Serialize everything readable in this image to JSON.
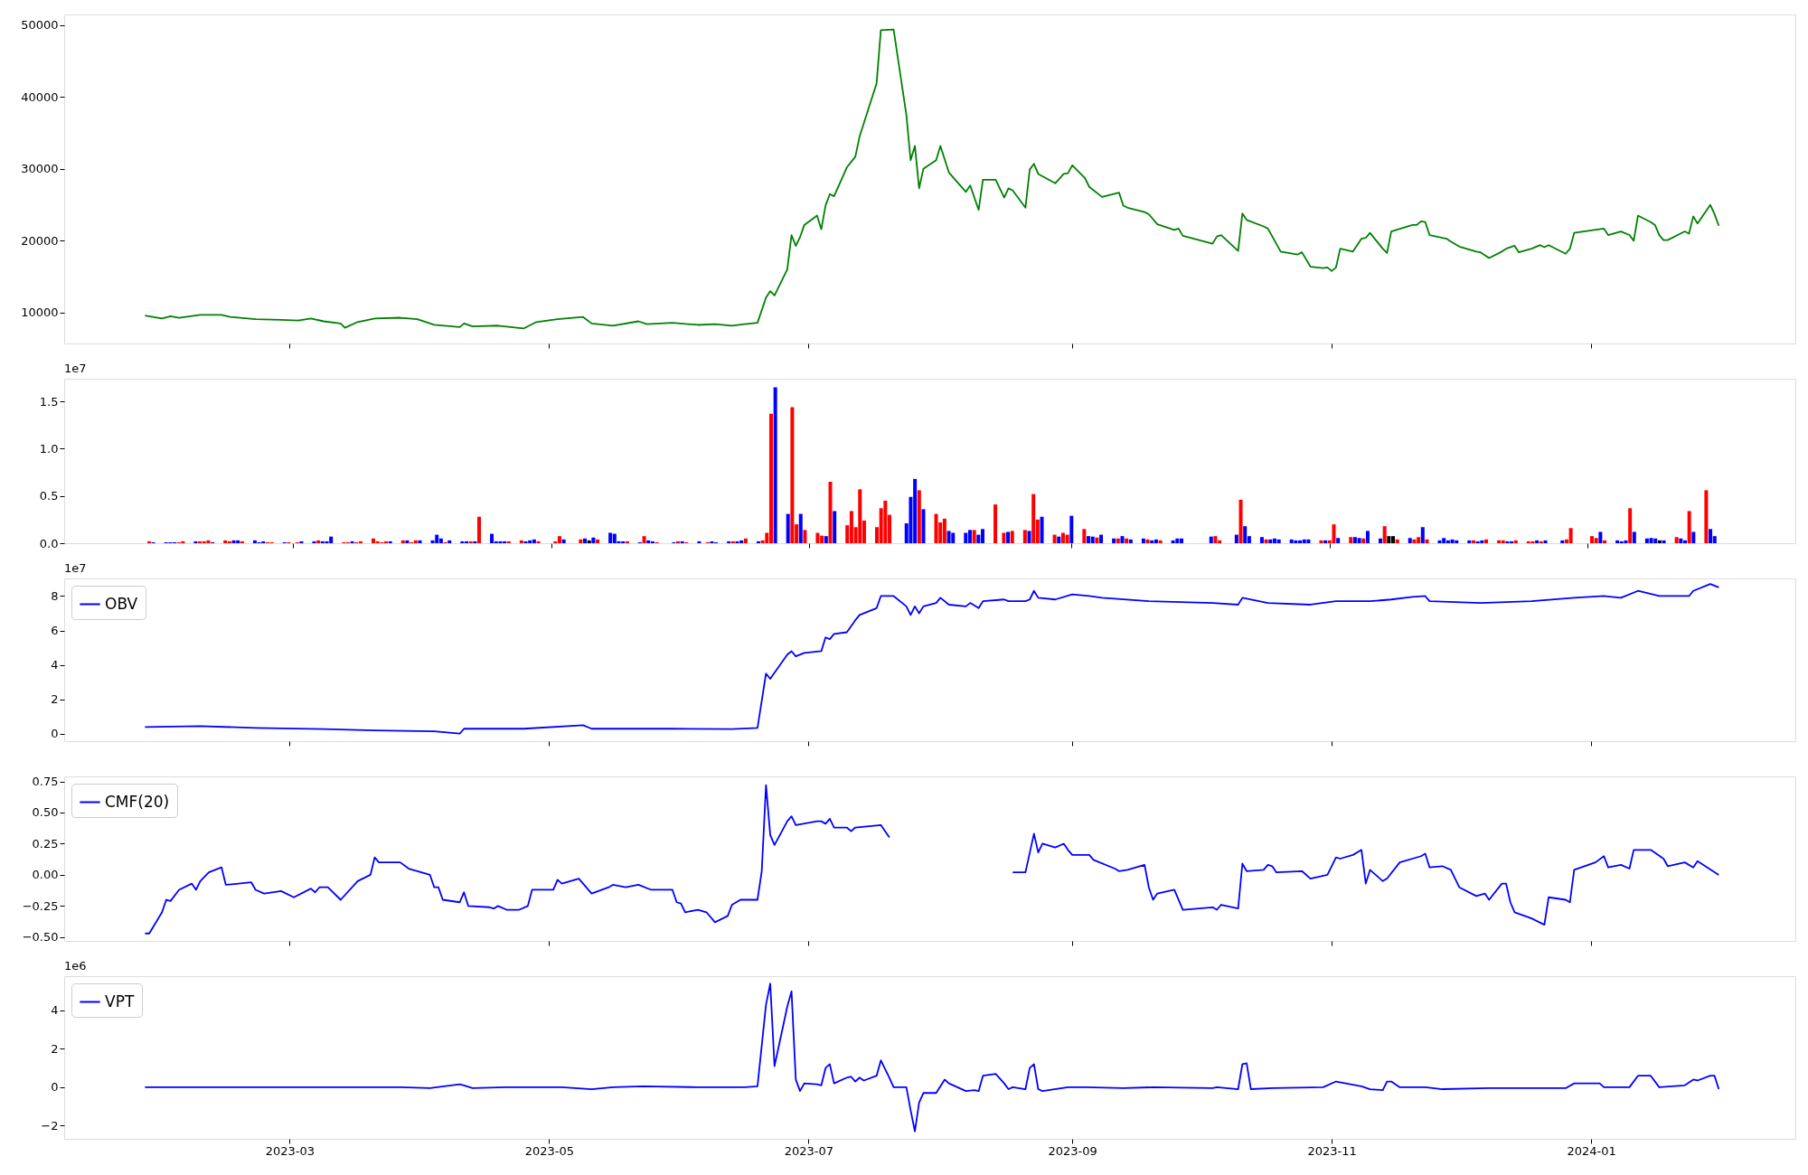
{
  "chart_data": [
    {
      "type": "line",
      "xlim": [
        "2023-01-07",
        "2024-02-18"
      ],
      "xticks": [
        "2023-03",
        "2023-05",
        "2023-07",
        "2023-09",
        "2023-11",
        "2024-01"
      ],
      "ylim": [
        5720,
        51480
      ],
      "yticks": [
        10000,
        20000,
        30000,
        40000,
        50000
      ],
      "tick_labels": "y",
      "series": [
        {
          "color": "#008000",
          "x": [
            "2023-01-26",
            "2023-01-30",
            "2023-02-01",
            "2023-02-03",
            "2023-02-08",
            "2023-02-13",
            "2023-02-15",
            "2023-02-21",
            "2023-02-27",
            "2023-03-03",
            "2023-03-06",
            "2023-03-09",
            "2023-03-13",
            "2023-03-14",
            "2023-03-17",
            "2023-03-21",
            "2023-03-27",
            "2023-03-31",
            "2023-04-04",
            "2023-04-10",
            "2023-04-11",
            "2023-04-13",
            "2023-04-19",
            "2023-04-25",
            "2023-04-28",
            "2023-05-03",
            "2023-05-09",
            "2023-05-11",
            "2023-05-16",
            "2023-05-22",
            "2023-05-24",
            "2023-05-30",
            "2023-06-05",
            "2023-06-09",
            "2023-06-13",
            "2023-06-16",
            "2023-06-19",
            "2023-06-21",
            "2023-06-22",
            "2023-06-23",
            "2023-06-26",
            "2023-06-27",
            "2023-06-28",
            "2023-06-29",
            "2023-06-30",
            "2023-07-03",
            "2023-07-04",
            "2023-07-05",
            "2023-07-06",
            "2023-07-07",
            "2023-07-10",
            "2023-07-12",
            "2023-07-13",
            "2023-07-17",
            "2023-07-18",
            "2023-07-21",
            "2023-07-24",
            "2023-07-25",
            "2023-07-26",
            "2023-07-27",
            "2023-07-28",
            "2023-07-31",
            "2023-08-01",
            "2023-08-03",
            "2023-08-07",
            "2023-08-08",
            "2023-08-10",
            "2023-08-11",
            "2023-08-14",
            "2023-08-16",
            "2023-08-17",
            "2023-08-18",
            "2023-08-21",
            "2023-08-22",
            "2023-08-23",
            "2023-08-24",
            "2023-08-28",
            "2023-08-30",
            "2023-08-31",
            "2023-09-01",
            "2023-09-04",
            "2023-09-05",
            "2023-09-08",
            "2023-09-12",
            "2023-09-13",
            "2023-09-14",
            "2023-09-18",
            "2023-09-19",
            "2023-09-21",
            "2023-09-25",
            "2023-09-26",
            "2023-09-27",
            "2023-10-04",
            "2023-10-05",
            "2023-10-06",
            "2023-10-10",
            "2023-10-11",
            "2023-10-12",
            "2023-10-16",
            "2023-10-17",
            "2023-10-20",
            "2023-10-24",
            "2023-10-25",
            "2023-10-27",
            "2023-10-30",
            "2023-10-31",
            "2023-11-01",
            "2023-11-02",
            "2023-11-03",
            "2023-11-06",
            "2023-11-08",
            "2023-11-09",
            "2023-11-10",
            "2023-11-13",
            "2023-11-14",
            "2023-11-15",
            "2023-11-20",
            "2023-11-21",
            "2023-11-22",
            "2023-11-23",
            "2023-11-24",
            "2023-11-28",
            "2023-11-29",
            "2023-12-01",
            "2023-12-05",
            "2023-12-06",
            "2023-12-08",
            "2023-12-11",
            "2023-12-12",
            "2023-12-14",
            "2023-12-15",
            "2023-12-18",
            "2023-12-20",
            "2023-12-21",
            "2023-12-22",
            "2023-12-26",
            "2023-12-27",
            "2023-12-28",
            "2024-01-04",
            "2024-01-05",
            "2024-01-08",
            "2024-01-10",
            "2024-01-11",
            "2024-01-12",
            "2024-01-15",
            "2024-01-16",
            "2024-01-17",
            "2024-01-18",
            "2024-01-19",
            "2024-01-23",
            "2024-01-24",
            "2024-01-25",
            "2024-01-26",
            "2024-01-29",
            "2024-01-30",
            "2024-01-31"
          ],
          "values": [
            9600,
            9200,
            9500,
            9300,
            9700,
            9700,
            9400,
            9100,
            9000,
            8900,
            9200,
            8800,
            8500,
            7900,
            8700,
            9200,
            9300,
            9100,
            8300,
            8000,
            8500,
            8100,
            8200,
            7800,
            8700,
            9100,
            9400,
            8500,
            8200,
            8800,
            8400,
            8600,
            8300,
            8400,
            8200,
            8400,
            8600,
            12100,
            13000,
            12400,
            16000,
            20800,
            19300,
            20500,
            22200,
            23500,
            21600,
            24900,
            26500,
            26200,
            30200,
            31700,
            34500,
            41900,
            49300,
            49400,
            37500,
            31200,
            33200,
            27300,
            30000,
            31200,
            33200,
            29500,
            26800,
            27700,
            24300,
            28500,
            28500,
            26000,
            27300,
            27000,
            24600,
            29900,
            30700,
            29300,
            28000,
            29300,
            29400,
            30500,
            28700,
            27500,
            26100,
            26700,
            24900,
            24600,
            24000,
            23700,
            22300,
            21500,
            21700,
            20700,
            19600,
            20600,
            20800,
            18600,
            23800,
            22900,
            22000,
            21700,
            18500,
            18100,
            18400,
            16400,
            16200,
            16300,
            15800,
            16300,
            18900,
            18500,
            20300,
            20400,
            21100,
            18900,
            18300,
            21300,
            22200,
            22200,
            22700,
            22600,
            20800,
            20300,
            19900,
            19200,
            18500,
            18400,
            17600,
            18500,
            18900,
            19300,
            18400,
            18900,
            19400,
            19100,
            19400,
            18200,
            18900,
            21100,
            21700,
            20800,
            21300,
            20800,
            20000,
            23500,
            22600,
            22200,
            20800,
            20100,
            20100,
            21300,
            21000,
            23400,
            22400,
            25000,
            23700,
            22100
          ]
        }
      ]
    },
    {
      "type": "bar",
      "xlim": [
        "2023-01-07",
        "2024-02-18"
      ],
      "xticks": [
        "2023-03",
        "2023-05",
        "2023-07",
        "2023-09",
        "2023-11",
        "2024-01"
      ],
      "ylim": [
        0,
        1.74
      ],
      "yticks": [
        {
          "value": 0,
          "label": "0.0"
        },
        {
          "value": 0.5,
          "label": "0.5"
        },
        {
          "value": 1,
          "label": "1.0"
        },
        {
          "value": 1.5,
          "label": "1.5"
        }
      ],
      "tick_labels": "y",
      "annotations": [
        "1e7"
      ],
      "x": [
        "2023-01-26",
        "2023-01-27",
        "2023-01-30",
        "2023-01-31",
        "2023-02-01",
        "2023-02-02",
        "2023-02-03",
        "2023-02-06",
        "2023-02-07",
        "2023-02-08",
        "2023-02-09",
        "2023-02-10",
        "2023-02-13",
        "2023-02-14",
        "2023-02-15",
        "2023-02-16",
        "2023-02-17",
        "2023-02-20",
        "2023-02-21",
        "2023-02-22",
        "2023-02-23",
        "2023-02-24",
        "2023-02-27",
        "2023-02-28",
        "2023-03-02",
        "2023-03-03",
        "2023-03-06",
        "2023-03-07",
        "2023-03-08",
        "2023-03-09",
        "2023-03-10",
        "2023-03-13",
        "2023-03-14",
        "2023-03-15",
        "2023-03-16",
        "2023-03-17",
        "2023-03-20",
        "2023-03-21",
        "2023-03-22",
        "2023-03-23",
        "2023-03-24",
        "2023-03-27",
        "2023-03-28",
        "2023-03-29",
        "2023-03-30",
        "2023-03-31",
        "2023-04-03",
        "2023-04-04",
        "2023-04-05",
        "2023-04-06",
        "2023-04-07",
        "2023-04-10",
        "2023-04-11",
        "2023-04-12",
        "2023-04-13",
        "2023-04-14",
        "2023-04-17",
        "2023-04-18",
        "2023-04-19",
        "2023-04-20",
        "2023-04-21",
        "2023-04-24",
        "2023-04-25",
        "2023-04-26",
        "2023-04-27",
        "2023-04-28",
        "2023-05-02",
        "2023-05-03",
        "2023-05-04",
        "2023-05-08",
        "2023-05-09",
        "2023-05-10",
        "2023-05-11",
        "2023-05-12",
        "2023-05-15",
        "2023-05-16",
        "2023-05-17",
        "2023-05-18",
        "2023-05-19",
        "2023-05-22",
        "2023-05-23",
        "2023-05-24",
        "2023-05-25",
        "2023-05-26",
        "2023-05-30",
        "2023-05-31",
        "2023-06-01",
        "2023-06-02",
        "2023-06-05",
        "2023-06-07",
        "2023-06-08",
        "2023-06-09",
        "2023-06-12",
        "2023-06-13",
        "2023-06-14",
        "2023-06-15",
        "2023-06-16",
        "2023-06-19",
        "2023-06-20",
        "2023-06-21",
        "2023-06-22",
        "2023-06-23",
        "2023-06-26",
        "2023-06-27",
        "2023-06-28",
        "2023-06-29",
        "2023-06-30",
        "2023-07-03",
        "2023-07-04",
        "2023-07-05",
        "2023-07-06",
        "2023-07-07",
        "2023-07-10",
        "2023-07-11",
        "2023-07-12",
        "2023-07-13",
        "2023-07-14",
        "2023-07-17",
        "2023-07-18",
        "2023-07-19",
        "2023-07-20",
        "2023-07-24",
        "2023-07-25",
        "2023-07-26",
        "2023-07-27",
        "2023-07-28",
        "2023-07-31",
        "2023-08-01",
        "2023-08-02",
        "2023-08-03",
        "2023-08-04",
        "2023-08-07",
        "2023-08-08",
        "2023-08-09",
        "2023-08-10",
        "2023-08-11",
        "2023-08-14",
        "2023-08-16",
        "2023-08-17",
        "2023-08-18",
        "2023-08-21",
        "2023-08-22",
        "2023-08-23",
        "2023-08-24",
        "2023-08-25",
        "2023-08-28",
        "2023-08-29",
        "2023-08-30",
        "2023-08-31",
        "2023-09-01",
        "2023-09-04",
        "2023-09-05",
        "2023-09-06",
        "2023-09-07",
        "2023-09-08",
        "2023-09-11",
        "2023-09-12",
        "2023-09-13",
        "2023-09-14",
        "2023-09-15",
        "2023-09-18",
        "2023-09-19",
        "2023-09-20",
        "2023-09-21",
        "2023-09-22",
        "2023-09-25",
        "2023-09-26",
        "2023-09-27",
        "2023-10-04",
        "2023-10-05",
        "2023-10-06",
        "2023-10-10",
        "2023-10-11",
        "2023-10-12",
        "2023-10-13",
        "2023-10-16",
        "2023-10-17",
        "2023-10-18",
        "2023-10-19",
        "2023-10-20",
        "2023-10-23",
        "2023-10-24",
        "2023-10-25",
        "2023-10-26",
        "2023-10-27",
        "2023-10-30",
        "2023-10-31",
        "2023-11-01",
        "2023-11-02",
        "2023-11-03",
        "2023-11-06",
        "2023-11-07",
        "2023-11-08",
        "2023-11-09",
        "2023-11-10",
        "2023-11-13",
        "2023-11-14",
        "2023-11-15",
        "2023-11-16",
        "2023-11-17",
        "2023-11-20",
        "2023-11-21",
        "2023-11-22",
        "2023-11-23",
        "2023-11-24",
        "2023-11-27",
        "2023-11-28",
        "2023-11-29",
        "2023-11-30",
        "2023-12-01",
        "2023-12-04",
        "2023-12-05",
        "2023-12-06",
        "2023-12-07",
        "2023-12-08",
        "2023-12-11",
        "2023-12-12",
        "2023-12-13",
        "2023-12-14",
        "2023-12-15",
        "2023-12-18",
        "2023-12-19",
        "2023-12-20",
        "2023-12-21",
        "2023-12-22",
        "2023-12-26",
        "2023-12-27",
        "2023-12-28",
        "2024-01-02",
        "2024-01-03",
        "2024-01-04",
        "2024-01-05",
        "2024-01-08",
        "2024-01-09",
        "2024-01-10",
        "2024-01-11",
        "2024-01-12",
        "2024-01-15",
        "2024-01-16",
        "2024-01-17",
        "2024-01-18",
        "2024-01-19",
        "2024-01-22",
        "2024-01-23",
        "2024-01-24",
        "2024-01-25",
        "2024-01-26",
        "2024-01-29",
        "2024-01-30",
        "2024-01-31"
      ],
      "values": [
        0.02,
        0.01,
        0.01,
        0.01,
        0.01,
        0.01,
        0.02,
        0.02,
        0.02,
        0.02,
        0.03,
        0.01,
        0.03,
        0.02,
        0.03,
        0.03,
        0.02,
        0.03,
        0.01,
        0.02,
        0.01,
        0.01,
        0.01,
        0.01,
        0.01,
        0.02,
        0.02,
        0.03,
        0.02,
        0.02,
        0.07,
        0.01,
        0.01,
        0.02,
        0.01,
        0.02,
        0.05,
        0.02,
        0.01,
        0.02,
        0.02,
        0.03,
        0.03,
        0.01,
        0.03,
        0.03,
        0.03,
        0.09,
        0.05,
        0.01,
        0.03,
        0.02,
        0.02,
        0.02,
        0.02,
        0.28,
        0.1,
        0.02,
        0.02,
        0.02,
        0.02,
        0.03,
        0.02,
        0.03,
        0.04,
        0.02,
        0.02,
        0.075,
        0.04,
        0.04,
        0.05,
        0.03,
        0.06,
        0.04,
        0.11,
        0.1,
        0.02,
        0.02,
        0.02,
        0.01,
        0.075,
        0.03,
        0.02,
        0.01,
        0.01,
        0.02,
        0.02,
        0.01,
        0.02,
        0.01,
        0.02,
        0.01,
        0.02,
        0.02,
        0.02,
        0.03,
        0.05,
        0.02,
        0.03,
        0.11,
        1.37,
        1.65,
        0.31,
        1.44,
        0.2,
        0.31,
        0.14,
        0.11,
        0.08,
        0.075,
        0.65,
        0.34,
        0.19,
        0.34,
        0.17,
        0.57,
        0.24,
        0.17,
        0.37,
        0.45,
        0.3,
        0.21,
        0.49,
        0.68,
        0.56,
        0.36,
        0.31,
        0.22,
        0.26,
        0.13,
        0.11,
        0.11,
        0.14,
        0.14,
        0.09,
        0.15,
        0.41,
        0.11,
        0.12,
        0.13,
        0.14,
        0.13,
        0.52,
        0.25,
        0.28,
        0.09,
        0.07,
        0.11,
        0.09,
        0.29,
        0.15,
        0.075,
        0.07,
        0.06,
        0.09,
        0.05,
        0.05,
        0.075,
        0.05,
        0.04,
        0.05,
        0.04,
        0.03,
        0.04,
        0.03,
        0.03,
        0.05,
        0.05,
        0.07,
        0.075,
        0.03,
        0.09,
        0.46,
        0.18,
        0.075,
        0.065,
        0.04,
        0.04,
        0.05,
        0.04,
        0.04,
        0.03,
        0.03,
        0.04,
        0.04,
        0.03,
        0.03,
        0.03,
        0.2,
        0.055,
        0.065,
        0.065,
        0.055,
        0.05,
        0.13,
        0.05,
        0.18,
        0.075,
        0.075,
        0.04,
        0.055,
        0.04,
        0.065,
        0.17,
        0.04,
        0.03,
        0.055,
        0.03,
        0.04,
        0.03,
        0.03,
        0.03,
        0.02,
        0.03,
        0.04,
        0.03,
        0.03,
        0.02,
        0.02,
        0.03,
        0.02,
        0.02,
        0.03,
        0.02,
        0.03,
        0.03,
        0.04,
        0.16,
        0.075,
        0.055,
        0.12,
        0.03,
        0.03,
        0.02,
        0.03,
        0.37,
        0.12,
        0.05,
        0.055,
        0.05,
        0.03,
        0.03,
        0.065,
        0.05,
        0.03,
        0.34,
        0.12,
        0.56,
        0.15,
        0.075
      ],
      "colors": [
        "#ff0000",
        "#0000ff",
        "#0000ff",
        "#0000ff",
        "#0000ff",
        "#ff0000",
        "#ff0000",
        "#0000ff",
        "#ff0000",
        "#ff0000",
        "#ff0000",
        "#0000ff",
        "#ff0000",
        "#ff0000",
        "#0000ff",
        "#0000ff",
        "#ff0000",
        "#0000ff",
        "#0000ff",
        "#0000ff",
        "#ff0000",
        "#ff0000",
        "#0000ff",
        "#ff0000",
        "#ff0000",
        "#0000ff",
        "#0000ff",
        "#ff0000",
        "#0000ff",
        "#0000ff",
        "#0000ff",
        "#ff0000",
        "#ff0000",
        "#0000ff",
        "#ff0000",
        "#ff0000",
        "#ff0000",
        "#ff0000",
        "#ff0000",
        "#ff0000",
        "#0000ff",
        "#ff0000",
        "#0000ff",
        "#ff0000",
        "#ff0000",
        "#0000ff",
        "#0000ff",
        "#0000ff",
        "#0000ff",
        "#ff0000",
        "#0000ff",
        "#0000ff",
        "#0000ff",
        "#ff0000",
        "#0000ff",
        "#ff0000",
        "#0000ff",
        "#0000ff",
        "#0000ff",
        "#0000ff",
        "#ff0000",
        "#ff0000",
        "#0000ff",
        "#0000ff",
        "#0000ff",
        "#ff0000",
        "#ff0000",
        "#ff0000",
        "#0000ff",
        "#ff0000",
        "#0000ff",
        "#000000",
        "#0000ff",
        "#ff0000",
        "#0000ff",
        "#0000ff",
        "#0000ff",
        "#0000ff",
        "#ff0000",
        "#0000ff",
        "#ff0000",
        "#0000ff",
        "#0000ff",
        "#ff0000",
        "#0000ff",
        "#ff0000",
        "#0000ff",
        "#ff0000",
        "#0000ff",
        "#ff0000",
        "#0000ff",
        "#0000ff",
        "#0000ff",
        "#ff0000",
        "#0000ff",
        "#0000ff",
        "#ff0000",
        "#0000ff",
        "#ff0000",
        "#ff0000",
        "#ff0000",
        "#0000ff",
        "#0000ff",
        "#ff0000",
        "#ff0000",
        "#0000ff",
        "#ff0000",
        "#ff0000",
        "#ff0000",
        "#0000ff",
        "#ff0000",
        "#0000ff",
        "#ff0000",
        "#ff0000",
        "#ff0000",
        "#ff0000",
        "#ff0000",
        "#ff0000",
        "#ff0000",
        "#ff0000",
        "#ff0000",
        "#0000ff",
        "#0000ff",
        "#0000ff",
        "#ff0000",
        "#0000ff",
        "#ff0000",
        "#ff0000",
        "#ff0000",
        "#0000ff",
        "#0000ff",
        "#0000ff",
        "#0000ff",
        "#ff0000",
        "#0000ff",
        "#0000ff",
        "#ff0000",
        "#ff0000",
        "#0000ff",
        "#ff0000",
        "#ff0000",
        "#0000ff",
        "#ff0000",
        "#ff0000",
        "#0000ff",
        "#ff0000",
        "#0000ff",
        "#ff0000",
        "#ff0000",
        "#0000ff",
        "#ff0000",
        "#0000ff",
        "#0000ff",
        "#ff0000",
        "#0000ff",
        "#0000ff",
        "#ff0000",
        "#0000ff",
        "#ff0000",
        "#0000ff",
        "#0000ff",
        "#ff0000",
        "#0000ff",
        "#0000ff",
        "#ff0000",
        "#0000ff",
        "#0000ff",
        "#0000ff",
        "#0000ff",
        "#ff0000",
        "#ff0000",
        "#0000ff",
        "#ff0000",
        "#0000ff",
        "#0000ff",
        "#0000ff",
        "#ff0000",
        "#0000ff",
        "#0000ff",
        "#0000ff",
        "#0000ff",
        "#0000ff",
        "#0000ff",
        "#0000ff",
        "#0000ff",
        "#ff0000",
        "#0000ff",
        "#ff0000",
        "#ff0000",
        "#0000ff",
        "#ff0000",
        "#0000ff",
        "#0000ff",
        "#ff0000",
        "#0000ff",
        "#0000ff",
        "#ff0000",
        "#000000",
        "#000000",
        "#ff0000",
        "#0000ff",
        "#ff0000",
        "#ff0000",
        "#0000ff",
        "#ff0000",
        "#0000ff",
        "#0000ff",
        "#0000ff",
        "#0000ff",
        "#0000ff",
        "#0000ff",
        "#ff0000",
        "#0000ff",
        "#0000ff",
        "#ff0000",
        "#ff0000",
        "#ff0000",
        "#0000ff",
        "#0000ff",
        "#ff0000",
        "#ff0000",
        "#ff0000",
        "#0000ff",
        "#ff0000",
        "#0000ff",
        "#0000ff",
        "#ff0000",
        "#ff0000",
        "#ff0000",
        "#ff0000",
        "#0000ff",
        "#ff0000",
        "#0000ff",
        "#0000ff",
        "#0000ff",
        "#ff0000",
        "#0000ff",
        "#0000ff",
        "#0000ff",
        "#0000ff",
        "#000000",
        "#0000ff",
        "#ff0000",
        "#0000ff",
        "#0000ff",
        "#ff0000",
        "#0000ff",
        "#ff0000",
        "#0000ff",
        "#0000ff"
      ]
    },
    {
      "type": "line",
      "xlim": [
        "2023-01-07",
        "2024-02-18"
      ],
      "xticks": [
        "2023-03",
        "2023-05",
        "2023-07",
        "2023-09",
        "2023-11",
        "2024-01"
      ],
      "ylim": [
        -0.42,
        9.02
      ],
      "yticks": [
        0,
        2,
        4,
        6,
        8
      ],
      "tick_labels": "y",
      "legend": "top left",
      "annotations": [
        "1e7"
      ],
      "series": [
        {
          "name": "OBV",
          "color": "#0000ff",
          "x": [
            "2023-01-26",
            "2023-02-08",
            "2023-02-21",
            "2023-03-09",
            "2023-03-21",
            "2023-04-04",
            "2023-04-10",
            "2023-04-11",
            "2023-04-25",
            "2023-05-09",
            "2023-05-11",
            "2023-05-30",
            "2023-06-13",
            "2023-06-19",
            "2023-06-21",
            "2023-06-22",
            "2023-06-26",
            "2023-06-27",
            "2023-06-28",
            "2023-06-30",
            "2023-07-04",
            "2023-07-05",
            "2023-07-06",
            "2023-07-07",
            "2023-07-10",
            "2023-07-12",
            "2023-07-13",
            "2023-07-17",
            "2023-07-18",
            "2023-07-21",
            "2023-07-24",
            "2023-07-25",
            "2023-07-26",
            "2023-07-27",
            "2023-07-28",
            "2023-07-31",
            "2023-08-01",
            "2023-08-03",
            "2023-08-07",
            "2023-08-08",
            "2023-08-10",
            "2023-08-11",
            "2023-08-16",
            "2023-08-17",
            "2023-08-21",
            "2023-08-22",
            "2023-08-23",
            "2023-08-24",
            "2023-08-28",
            "2023-09-01",
            "2023-09-05",
            "2023-09-08",
            "2023-09-19",
            "2023-10-04",
            "2023-10-10",
            "2023-10-11",
            "2023-10-17",
            "2023-10-27",
            "2023-11-02",
            "2023-11-10",
            "2023-11-15",
            "2023-11-20",
            "2023-11-23",
            "2023-11-24",
            "2023-12-06",
            "2023-12-18",
            "2023-12-28",
            "2024-01-04",
            "2024-01-08",
            "2024-01-12",
            "2024-01-17",
            "2024-01-24",
            "2024-01-25",
            "2024-01-29",
            "2024-01-31"
          ],
          "values": [
            0.4,
            0.45,
            0.35,
            0.28,
            0.2,
            0.15,
            0.02,
            0.3,
            0.3,
            0.5,
            0.3,
            0.3,
            0.28,
            0.35,
            3.5,
            3.2,
            4.6,
            4.8,
            4.5,
            4.7,
            4.8,
            5.6,
            5.5,
            5.8,
            5.9,
            6.6,
            6.9,
            7.3,
            8.0,
            8.0,
            7.4,
            6.9,
            7.4,
            7.0,
            7.4,
            7.6,
            7.9,
            7.5,
            7.4,
            7.6,
            7.3,
            7.7,
            7.8,
            7.7,
            7.7,
            7.8,
            8.3,
            7.9,
            7.8,
            8.1,
            8.0,
            7.9,
            7.7,
            7.6,
            7.5,
            7.9,
            7.6,
            7.5,
            7.7,
            7.7,
            7.8,
            7.95,
            8.0,
            7.7,
            7.6,
            7.7,
            7.9,
            8.0,
            7.9,
            8.3,
            8.0,
            8.0,
            8.3,
            8.7,
            8.5
          ]
        }
      ]
    },
    {
      "type": "line",
      "xlim": [
        "2023-01-07",
        "2024-02-18"
      ],
      "xticks": [
        "2023-03",
        "2023-05",
        "2023-07",
        "2023-09",
        "2023-11",
        "2024-01"
      ],
      "ylim": [
        -0.53,
        0.79
      ],
      "yticks": [
        {
          "value": -0.5,
          "label": "−0.50"
        },
        {
          "value": -0.25,
          "label": "−0.25"
        },
        {
          "value": 0,
          "label": "0.00"
        },
        {
          "value": 0.25,
          "label": "0.25"
        },
        {
          "value": 0.5,
          "label": "0.50"
        },
        {
          "value": 0.75,
          "label": "0.75"
        }
      ],
      "tick_labels": "y",
      "legend": "top left",
      "series": [
        {
          "name": "CMF(20)",
          "color": "#0000ff",
          "x": [
            "2023-01-26",
            "2023-01-27",
            "2023-01-30",
            "2023-01-31",
            "2023-02-01",
            "2023-02-03",
            "2023-02-06",
            "2023-02-07",
            "2023-02-08",
            "2023-02-10",
            "2023-02-13",
            "2023-02-14",
            "2023-02-17",
            "2023-02-20",
            "2023-02-21",
            "2023-02-23",
            "2023-02-27",
            "2023-03-02",
            "2023-03-06",
            "2023-03-07",
            "2023-03-08",
            "2023-03-10",
            "2023-03-13",
            "2023-03-17",
            "2023-03-20",
            "2023-03-21",
            "2023-03-22",
            "2023-03-27",
            "2023-03-29",
            "2023-04-03",
            "2023-04-04",
            "2023-04-05",
            "2023-04-06",
            "2023-04-10",
            "2023-04-11",
            "2023-04-12",
            "2023-04-17",
            "2023-04-18",
            "2023-04-19",
            "2023-04-21",
            "2023-04-24",
            "2023-04-26",
            "2023-04-27",
            "2023-05-02",
            "2023-05-03",
            "2023-05-04",
            "2023-05-08",
            "2023-05-11",
            "2023-05-15",
            "2023-05-16",
            "2023-05-19",
            "2023-05-22",
            "2023-05-25",
            "2023-05-30",
            "2023-05-31",
            "2023-06-01",
            "2023-06-02",
            "2023-06-05",
            "2023-06-07",
            "2023-06-09",
            "2023-06-12",
            "2023-06-13",
            "2023-06-15",
            "2023-06-19",
            "2023-06-20",
            "2023-06-21",
            "2023-06-22",
            "2023-06-23",
            "2023-06-26",
            "2023-06-27",
            "2023-06-28",
            "2023-07-03",
            "2023-07-04",
            "2023-07-05",
            "2023-07-06",
            "2023-07-07",
            "2023-07-10",
            "2023-07-11",
            "2023-07-12",
            "2023-07-18",
            "2023-07-20",
            "2023-08-01",
            "2023-08-18",
            "2023-08-21",
            "2023-08-23",
            "2023-08-24",
            "2023-08-25",
            "2023-08-28",
            "2023-08-30",
            "2023-08-31",
            "2023-09-01",
            "2023-09-05",
            "2023-09-06",
            "2023-09-11",
            "2023-09-12",
            "2023-09-14",
            "2023-09-18",
            "2023-09-19",
            "2023-09-20",
            "2023-09-21",
            "2023-09-25",
            "2023-09-27",
            "2023-10-04",
            "2023-10-05",
            "2023-10-06",
            "2023-10-10",
            "2023-10-11",
            "2023-10-12",
            "2023-10-16",
            "2023-10-17",
            "2023-10-18",
            "2023-10-19",
            "2023-10-25",
            "2023-10-27",
            "2023-10-31",
            "2023-11-02",
            "2023-11-03",
            "2023-11-06",
            "2023-11-08",
            "2023-11-09",
            "2023-11-10",
            "2023-11-13",
            "2023-11-14",
            "2023-11-17",
            "2023-11-22",
            "2023-11-23",
            "2023-11-24",
            "2023-11-27",
            "2023-11-29",
            "2023-12-01",
            "2023-12-05",
            "2023-12-07",
            "2023-12-08",
            "2023-12-11",
            "2023-12-12",
            "2023-12-13",
            "2023-12-14",
            "2023-12-18",
            "2023-12-21",
            "2023-12-22",
            "2023-12-26",
            "2023-12-27",
            "2023-12-28",
            "2024-01-02",
            "2024-01-04",
            "2024-01-05",
            "2024-01-08",
            "2024-01-10",
            "2024-01-11",
            "2024-01-15",
            "2024-01-18",
            "2024-01-19",
            "2024-01-23",
            "2024-01-25",
            "2024-01-26",
            "2024-01-31"
          ],
          "values": [
            -0.47,
            -0.47,
            -0.3,
            -0.2,
            -0.21,
            -0.12,
            -0.07,
            -0.12,
            -0.05,
            0.02,
            0.06,
            -0.08,
            -0.07,
            -0.06,
            -0.12,
            -0.15,
            -0.13,
            -0.18,
            -0.11,
            -0.14,
            -0.1,
            -0.1,
            -0.2,
            -0.05,
            0.0,
            0.14,
            0.1,
            0.1,
            0.05,
            0.0,
            -0.1,
            -0.1,
            -0.2,
            -0.22,
            -0.14,
            -0.25,
            -0.26,
            -0.27,
            -0.25,
            -0.28,
            -0.28,
            -0.25,
            -0.12,
            -0.12,
            -0.04,
            -0.07,
            -0.03,
            -0.15,
            -0.1,
            -0.08,
            -0.1,
            -0.08,
            -0.12,
            -0.12,
            -0.22,
            -0.23,
            -0.3,
            -0.28,
            -0.3,
            -0.38,
            -0.33,
            -0.24,
            -0.2,
            -0.2,
            0.03,
            0.72,
            0.32,
            0.24,
            0.43,
            0.47,
            0.4,
            0.43,
            0.43,
            0.41,
            0.45,
            0.38,
            0.38,
            0.35,
            0.38,
            0.4,
            0.3,
            null,
            0.02,
            0.02,
            0.33,
            0.18,
            0.25,
            0.22,
            0.25,
            0.2,
            0.16,
            0.16,
            0.12,
            0.05,
            0.03,
            0.04,
            0.08,
            -0.1,
            -0.2,
            -0.15,
            -0.12,
            -0.28,
            -0.26,
            -0.28,
            -0.24,
            -0.27,
            0.09,
            0.03,
            0.04,
            0.08,
            0.07,
            0.02,
            0.03,
            -0.03,
            0.0,
            0.14,
            0.13,
            0.16,
            0.2,
            -0.07,
            0.04,
            -0.05,
            -0.03,
            0.1,
            0.15,
            0.17,
            0.06,
            0.07,
            0.04,
            -0.1,
            -0.17,
            -0.15,
            -0.2,
            -0.07,
            -0.07,
            -0.22,
            -0.3,
            -0.35,
            -0.4,
            -0.18,
            -0.2,
            -0.22,
            0.04,
            0.1,
            0.15,
            0.06,
            0.08,
            0.05,
            0.2,
            0.2,
            0.13,
            0.07,
            0.1,
            0.06,
            0.11,
            0.0
          ]
        }
      ]
    },
    {
      "type": "line",
      "xlim": [
        "2023-01-07",
        "2024-02-18"
      ],
      "xticks": [
        "2023-03",
        "2023-05",
        "2023-07",
        "2023-09",
        "2023-11",
        "2024-01"
      ],
      "ylim": [
        -2.69,
        5.79
      ],
      "yticks": [
        {
          "value": -2,
          "label": "−2"
        },
        0,
        2,
        4
      ],
      "legend": "top left",
      "annotations": [
        "1e6"
      ],
      "series": [
        {
          "name": "VPT",
          "color": "#0000ff",
          "x": [
            "2023-01-26",
            "2023-02-15",
            "2023-03-14",
            "2023-03-27",
            "2023-04-03",
            "2023-04-10",
            "2023-04-11",
            "2023-04-13",
            "2023-04-21",
            "2023-05-04",
            "2023-05-11",
            "2023-05-16",
            "2023-05-23",
            "2023-06-05",
            "2023-06-16",
            "2023-06-19",
            "2023-06-21",
            "2023-06-22",
            "2023-06-23",
            "2023-06-26",
            "2023-06-27",
            "2023-06-28",
            "2023-06-29",
            "2023-06-30",
            "2023-07-03",
            "2023-07-04",
            "2023-07-05",
            "2023-07-06",
            "2023-07-07",
            "2023-07-10",
            "2023-07-11",
            "2023-07-12",
            "2023-07-13",
            "2023-07-14",
            "2023-07-17",
            "2023-07-18",
            "2023-07-20",
            "2023-07-21",
            "2023-07-24",
            "2023-07-25",
            "2023-07-26",
            "2023-07-27",
            "2023-07-28",
            "2023-07-31",
            "2023-08-02",
            "2023-08-03",
            "2023-08-07",
            "2023-08-09",
            "2023-08-10",
            "2023-08-11",
            "2023-08-14",
            "2023-08-16",
            "2023-08-17",
            "2023-08-18",
            "2023-08-21",
            "2023-08-22",
            "2023-08-23",
            "2023-08-24",
            "2023-08-25",
            "2023-08-31",
            "2023-09-04",
            "2023-09-13",
            "2023-09-20",
            "2023-10-04",
            "2023-10-05",
            "2023-10-10",
            "2023-10-11",
            "2023-10-12",
            "2023-10-13",
            "2023-10-18",
            "2023-10-30",
            "2023-11-02",
            "2023-11-08",
            "2023-11-10",
            "2023-11-13",
            "2023-11-14",
            "2023-11-15",
            "2023-11-17",
            "2023-11-23",
            "2023-11-27",
            "2023-12-08",
            "2023-12-26",
            "2023-12-28",
            "2024-01-03",
            "2024-01-04",
            "2024-01-10",
            "2024-01-12",
            "2024-01-15",
            "2024-01-17",
            "2024-01-23",
            "2024-01-25",
            "2024-01-26",
            "2024-01-29",
            "2024-01-30",
            "2024-01-31"
          ],
          "values": [
            0.0,
            0.0,
            0.0,
            0.0,
            -0.05,
            0.15,
            0.1,
            -0.05,
            0.0,
            0.0,
            -0.1,
            0.0,
            0.05,
            0.0,
            0.0,
            0.05,
            4.3,
            5.4,
            1.1,
            4.2,
            5.0,
            0.4,
            -0.2,
            0.2,
            0.15,
            0.1,
            1.0,
            1.2,
            0.2,
            0.5,
            0.55,
            0.3,
            0.5,
            0.35,
            0.6,
            1.4,
            0.5,
            0.0,
            0.0,
            -1.2,
            -2.3,
            -0.8,
            -0.3,
            -0.3,
            0.4,
            0.2,
            -0.2,
            -0.15,
            -0.2,
            0.6,
            0.7,
            0.2,
            -0.1,
            0.0,
            -0.1,
            1.0,
            1.2,
            -0.1,
            -0.2,
            0.0,
            0.0,
            -0.05,
            0.0,
            -0.05,
            0.0,
            -0.1,
            1.2,
            1.25,
            -0.1,
            -0.05,
            0.0,
            0.3,
            0.05,
            -0.1,
            -0.15,
            0.3,
            0.3,
            0.0,
            0.0,
            -0.1,
            -0.05,
            -0.05,
            0.2,
            0.2,
            0.0,
            0.0,
            0.6,
            0.6,
            0.0,
            0.1,
            0.4,
            0.35,
            0.6,
            0.6,
            -0.1
          ]
        }
      ]
    }
  ]
}
